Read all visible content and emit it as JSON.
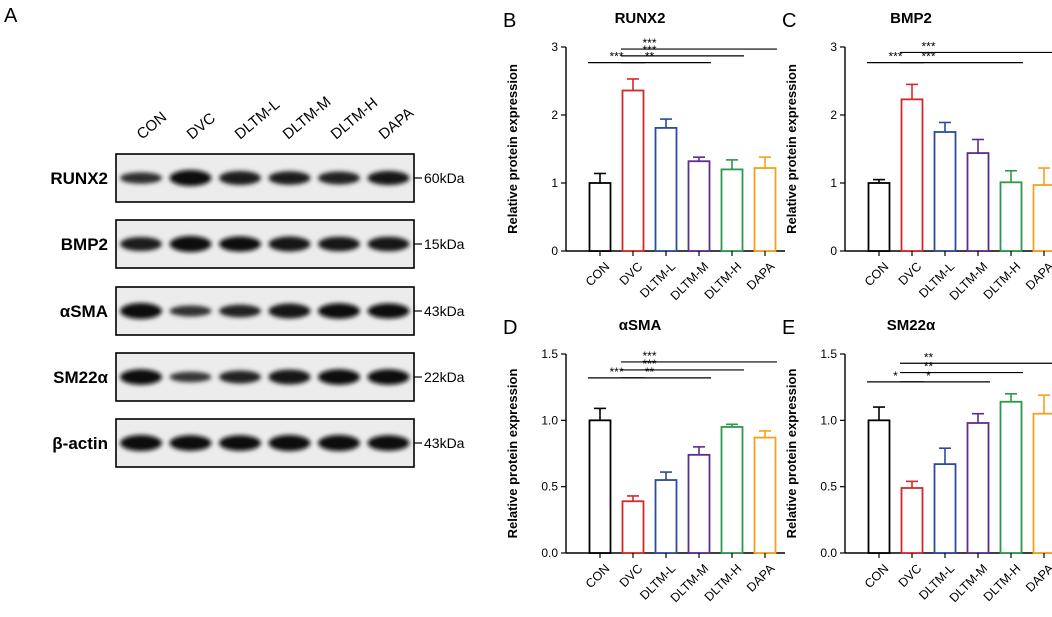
{
  "panel_a": {
    "label": "A",
    "lanes": [
      "CON",
      "DVC",
      "DLTM-L",
      "DLTM-M",
      "DLTM-H",
      "DAPA"
    ],
    "blots": [
      {
        "protein": "RUNX2",
        "size": "60kDa",
        "intensity": [
          0.55,
          1.0,
          0.8,
          0.75,
          0.7,
          0.82
        ]
      },
      {
        "protein": "BMP2",
        "size": "15kDa",
        "intensity": [
          0.8,
          1.0,
          0.92,
          0.9,
          0.85,
          0.85
        ]
      },
      {
        "protein": "αSMA",
        "size": "43kDa",
        "intensity": [
          1.0,
          0.5,
          0.68,
          0.9,
          0.95,
          0.92
        ]
      },
      {
        "protein": "SM22α",
        "size": "22kDa",
        "intensity": [
          0.95,
          0.45,
          0.7,
          0.88,
          0.95,
          0.95
        ]
      },
      {
        "protein": "β-actin",
        "size": "43kDa",
        "intensity": [
          1.0,
          0.95,
          0.95,
          1.0,
          1.0,
          0.95
        ]
      }
    ]
  },
  "chart_data": [
    {
      "type": "bar",
      "panel": "B",
      "title": "RUNX2",
      "ylabel": "Relative protein expression",
      "categories": [
        "CON",
        "DVC",
        "DLTM-L",
        "DLTM-M",
        "DLTM-H",
        "DAPA"
      ],
      "values": [
        1.0,
        2.36,
        1.81,
        1.32,
        1.2,
        1.22
      ],
      "errors": [
        0.14,
        0.17,
        0.13,
        0.06,
        0.14,
        0.16
      ],
      "colors": [
        "#000000",
        "#d62728",
        "#2b4c9b",
        "#5a2d8e",
        "#2a9a4a",
        "#f5a020"
      ],
      "ylim": [
        0,
        3
      ],
      "yticks": [
        "0",
        "1",
        "2",
        "3"
      ],
      "ytick_values": [
        0,
        1,
        2,
        3
      ],
      "significance": [
        {
          "from": 0,
          "to": 1,
          "label": "***",
          "y": 2.77
        },
        {
          "from": 1,
          "to": 3,
          "label": "**",
          "y": 2.77
        },
        {
          "from": 1,
          "to": 4,
          "label": "***",
          "y": 2.87
        },
        {
          "from": 1,
          "to": 5,
          "label": "***",
          "y": 2.97
        }
      ]
    },
    {
      "type": "bar",
      "panel": "C",
      "title": "BMP2",
      "ylabel": "Relative protein expression",
      "categories": [
        "CON",
        "DVC",
        "DLTM-L",
        "DLTM-M",
        "DLTM-H",
        "DAPA"
      ],
      "values": [
        1.0,
        2.23,
        1.75,
        1.44,
        1.01,
        0.97
      ],
      "errors": [
        0.05,
        0.22,
        0.14,
        0.2,
        0.17,
        0.25
      ],
      "colors": [
        "#000000",
        "#d62728",
        "#2b4c9b",
        "#5a2d8e",
        "#2a9a4a",
        "#f5a020"
      ],
      "ylim": [
        0,
        3
      ],
      "yticks": [
        "0",
        "1",
        "2",
        "3"
      ],
      "ytick_values": [
        0,
        1,
        2,
        3
      ],
      "significance": [
        {
          "from": 0,
          "to": 1,
          "label": "***",
          "y": 2.77
        },
        {
          "from": 1,
          "to": 4,
          "label": "***",
          "y": 2.77
        },
        {
          "from": 1,
          "to": 5,
          "label": "***",
          "y": 2.92
        }
      ]
    },
    {
      "type": "bar",
      "panel": "D",
      "title": "αSMA",
      "ylabel": "Relative protein expression",
      "categories": [
        "CON",
        "DVC",
        "DLTM-L",
        "DLTM-M",
        "DLTM-H",
        "DAPA"
      ],
      "values": [
        1.0,
        0.39,
        0.55,
        0.74,
        0.95,
        0.87
      ],
      "errors": [
        0.09,
        0.04,
        0.06,
        0.06,
        0.02,
        0.05
      ],
      "colors": [
        "#000000",
        "#d62728",
        "#2b4c9b",
        "#5a2d8e",
        "#2a9a4a",
        "#f5a020"
      ],
      "ylim": [
        0,
        1.5
      ],
      "yticks": [
        "0.0",
        "0.5",
        "1.0",
        "1.5"
      ],
      "ytick_values": [
        0,
        0.5,
        1.0,
        1.5
      ],
      "significance": [
        {
          "from": 0,
          "to": 1,
          "label": "***",
          "y": 1.32
        },
        {
          "from": 1,
          "to": 3,
          "label": "**",
          "y": 1.32
        },
        {
          "from": 1,
          "to": 4,
          "label": "***",
          "y": 1.38
        },
        {
          "from": 1,
          "to": 5,
          "label": "***",
          "y": 1.44
        }
      ]
    },
    {
      "type": "bar",
      "panel": "E",
      "title": "SM22α",
      "ylabel": "Relative protein expression",
      "categories": [
        "CON",
        "DVC",
        "DLTM-L",
        "DLTM-M",
        "DLTM-H",
        "DAPA"
      ],
      "values": [
        1.0,
        0.49,
        0.67,
        0.98,
        1.14,
        1.05
      ],
      "errors": [
        0.1,
        0.05,
        0.12,
        0.07,
        0.06,
        0.14
      ],
      "colors": [
        "#000000",
        "#d62728",
        "#2b4c9b",
        "#5a2d8e",
        "#2a9a4a",
        "#f5a020"
      ],
      "ylim": [
        0,
        1.5
      ],
      "yticks": [
        "0.0",
        "0.5",
        "1.0",
        "1.5"
      ],
      "ytick_values": [
        0,
        0.5,
        1.0,
        1.5
      ],
      "significance": [
        {
          "from": 0,
          "to": 1,
          "label": "*",
          "y": 1.29
        },
        {
          "from": 1,
          "to": 3,
          "label": "*",
          "y": 1.29
        },
        {
          "from": 1,
          "to": 4,
          "label": "**",
          "y": 1.36
        },
        {
          "from": 1,
          "to": 5,
          "label": "**",
          "y": 1.43
        }
      ]
    }
  ]
}
